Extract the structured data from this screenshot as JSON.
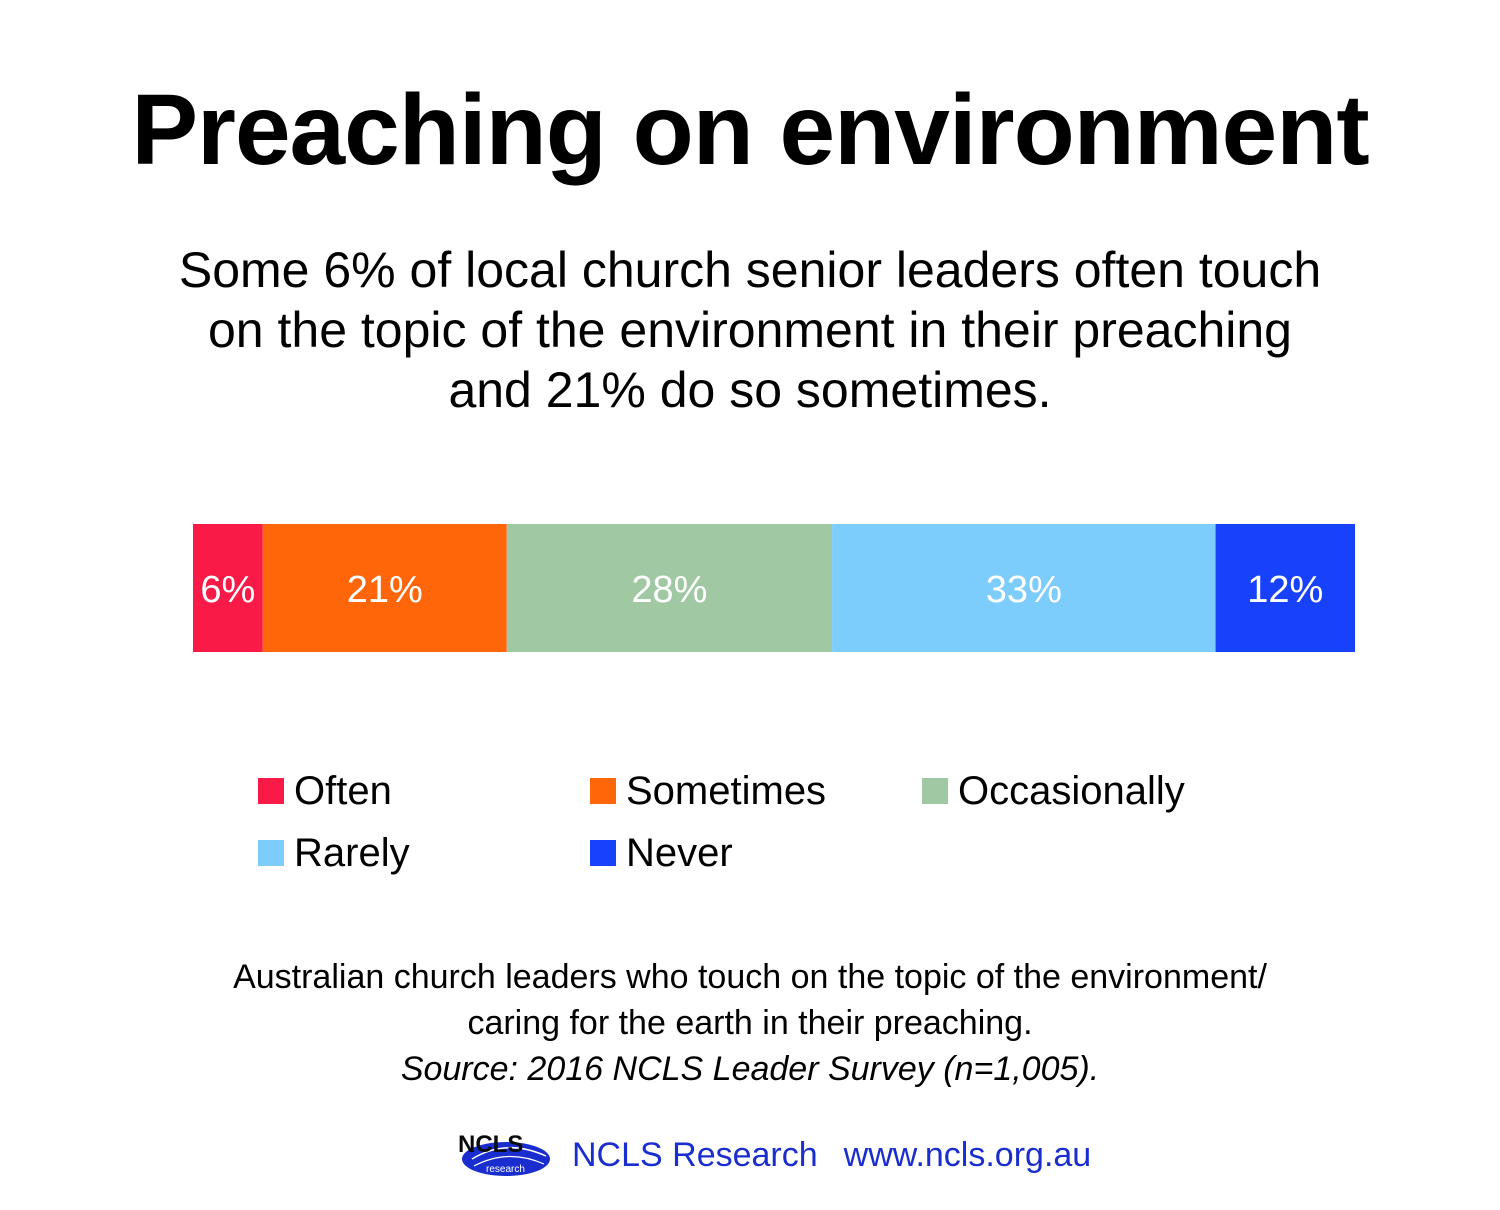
{
  "title": "Preaching on environment",
  "subtitle_lines": [
    "Some 6% of local church senior leaders often touch",
    "on the topic of the environment in their preaching",
    "and 21% do so sometimes."
  ],
  "chart_data": {
    "type": "bar",
    "orientation": "horizontal-stacked",
    "categories": [
      ""
    ],
    "series": [
      {
        "name": "Often",
        "values": [
          6
        ],
        "label": "6%",
        "color": "#f91a47"
      },
      {
        "name": "Sometimes",
        "values": [
          21
        ],
        "label": "21%",
        "color": "#ff6609"
      },
      {
        "name": "Occasionally",
        "values": [
          28
        ],
        "label": "28%",
        "color": "#a0c8a3"
      },
      {
        "name": "Rarely",
        "values": [
          33
        ],
        "label": "33%",
        "color": "#7cccfc"
      },
      {
        "name": "Never",
        "values": [
          12
        ],
        "label": "12%",
        "color": "#1841fc"
      }
    ],
    "xlim": [
      0,
      100
    ],
    "grid": false,
    "legend_placement": "bottom"
  },
  "caption": {
    "line1": "Australian church leaders who touch on the topic of the environment/",
    "line2": "caring for the earth in their preaching.",
    "source": "Source: 2016 NCLS Leader Survey (n=1,005)."
  },
  "footer": {
    "logo_text": "NCLS",
    "logo_subtext": "research",
    "org": "NCLS Research",
    "url": "www.ncls.org.au"
  },
  "colors": {
    "label_text": "#ffffff",
    "footer_text": "#1a2ecf"
  }
}
